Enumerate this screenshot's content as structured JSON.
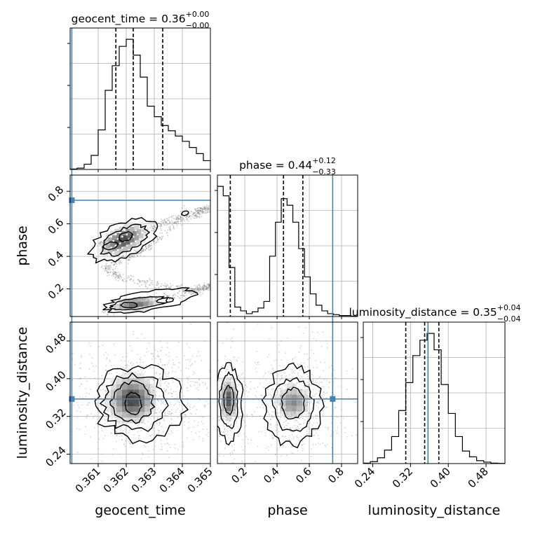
{
  "chart_data": {
    "type": "corner",
    "grid": true,
    "truth_color": "#4682b4",
    "contour_color": "#000000",
    "hist_color": "#000000",
    "quantile_line_style": "dashed",
    "parameters": [
      {
        "name": "geocent_time",
        "axis_label": "geocent_time",
        "title_prefix": "geocent_time = 0.36",
        "title_plus": "+0.00",
        "title_minus": "−0.00",
        "range": [
          0.36,
          0.365
        ],
        "ticks": [
          0.361,
          0.362,
          0.363,
          0.364,
          0.365
        ],
        "tick_labels": [
          "0.361",
          "0.362",
          "0.363",
          "0.364",
          "0.365"
        ],
        "truth": 0.36006,
        "quantiles": [
          0.36163,
          0.36225,
          0.3633
        ],
        "hist_bins": [
          0.36,
          0.36025,
          0.3605,
          0.36075,
          0.361,
          0.36125,
          0.3615,
          0.36175,
          0.362,
          0.36225,
          0.3625,
          0.36275,
          0.363,
          0.36325,
          0.3635,
          0.36375,
          0.364,
          0.36425,
          0.3645,
          0.36475,
          0.365
        ],
        "hist_values": [
          0.5,
          1.5,
          6,
          16,
          45,
          90,
          118,
          140,
          148,
          130,
          105,
          72,
          60,
          50,
          44,
          38,
          32,
          25,
          18,
          10
        ]
      },
      {
        "name": "phase",
        "axis_label": "phase",
        "title_prefix": "phase = 0.44",
        "title_plus": "+0.12",
        "title_minus": "−0.33",
        "range": [
          0.03,
          0.9
        ],
        "ticks": [
          0.2,
          0.4,
          0.6,
          0.8
        ],
        "tick_labels": [
          "0.2",
          "0.4",
          "0.6",
          "0.8"
        ],
        "truth": 0.745,
        "quantiles": [
          0.11,
          0.44,
          0.56
        ],
        "hist_bins": [
          0.03,
          0.066,
          0.102,
          0.138,
          0.174,
          0.21,
          0.246,
          0.282,
          0.318,
          0.354,
          0.39,
          0.426,
          0.462,
          0.498,
          0.534,
          0.57,
          0.606,
          0.642,
          0.678,
          0.714,
          0.75,
          0.786,
          0.822,
          0.858,
          0.894
        ],
        "hist_values": [
          138,
          128,
          52,
          10,
          6,
          3,
          5,
          9,
          16,
          64,
          100,
          125,
          118,
          100,
          72,
          42,
          24,
          12,
          6,
          3,
          2,
          1,
          1,
          0.5
        ]
      },
      {
        "name": "luminosity_distance",
        "axis_label": "luminosity_distance",
        "title_prefix": "luminosity_distance = 0.35",
        "title_plus": "+0.04",
        "title_minus": "−0.04",
        "range": [
          0.22,
          0.52
        ],
        "ticks": [
          0.24,
          0.32,
          0.4,
          0.48
        ],
        "tick_labels": [
          "0.24",
          "0.32",
          "0.40",
          "0.48"
        ],
        "truth": 0.357,
        "quantiles": [
          0.31,
          0.35,
          0.38
        ],
        "hist_bins": [
          0.22,
          0.235,
          0.25,
          0.265,
          0.28,
          0.295,
          0.31,
          0.325,
          0.34,
          0.355,
          0.37,
          0.385,
          0.4,
          0.415,
          0.43,
          0.445,
          0.46,
          0.475,
          0.49,
          0.505,
          0.52
        ],
        "hist_values": [
          0.5,
          2,
          6,
          14,
          28,
          55,
          84,
          112,
          128,
          135,
          118,
          82,
          52,
          28,
          13,
          7,
          3,
          1.5,
          0.5,
          0.2
        ]
      }
    ],
    "panels_2d": [
      {
        "x_param": "geocent_time",
        "y_param": "phase",
        "truth": [
          0.36006,
          0.745
        ],
        "density_peaks": [
          {
            "x": 0.36155,
            "y": 0.48
          },
          {
            "x": 0.3621,
            "y": 0.52
          },
          {
            "x": 0.3622,
            "y": 0.1
          },
          {
            "x": 0.3628,
            "y": 0.14
          }
        ]
      },
      {
        "x_param": "geocent_time",
        "y_param": "luminosity_distance",
        "truth": [
          0.36006,
          0.357
        ],
        "density_peaks": [
          {
            "x": 0.3622,
            "y": 0.355
          }
        ]
      },
      {
        "x_param": "phase",
        "y_param": "luminosity_distance",
        "truth": [
          0.745,
          0.357
        ],
        "density_peaks": [
          {
            "x": 0.1,
            "y": 0.36
          },
          {
            "x": 0.5,
            "y": 0.35
          }
        ]
      }
    ]
  }
}
